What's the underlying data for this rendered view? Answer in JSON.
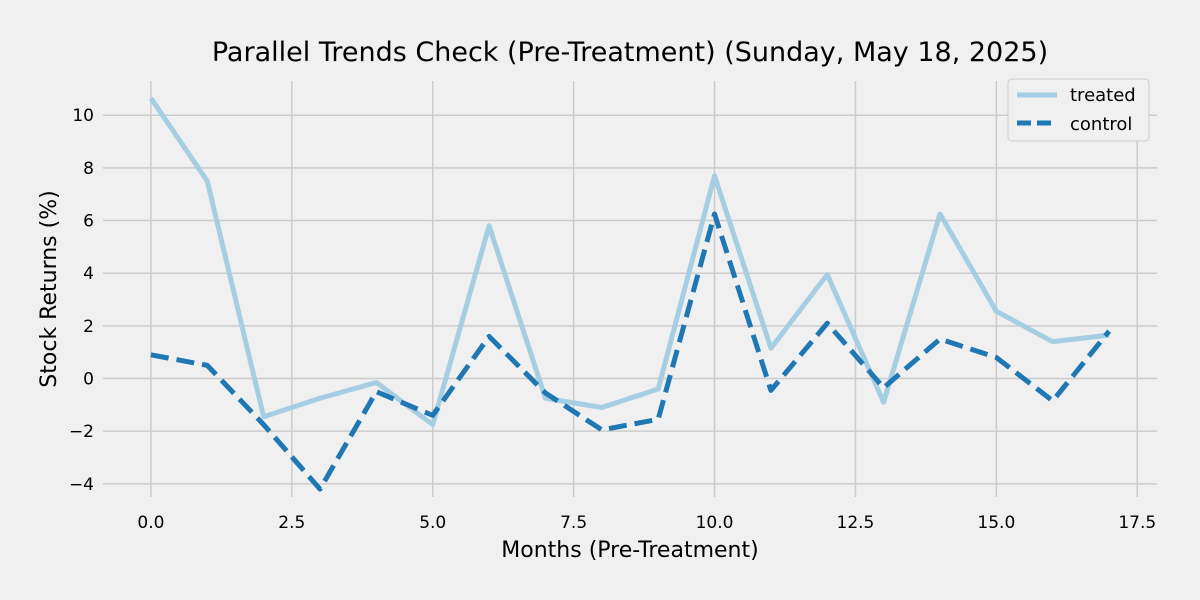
{
  "chart_data": {
    "type": "line",
    "title": "Parallel Trends Check (Pre-Treatment) (Sunday, May 18, 2025)",
    "xlabel": "Months (Pre-Treatment)",
    "ylabel": "Stock Returns (%)",
    "xlim": [
      -0.85,
      17.85
    ],
    "ylim": [
      -4.5,
      11.3
    ],
    "xticks": [
      0.0,
      2.5,
      5.0,
      7.5,
      10.0,
      12.5,
      15.0,
      17.5
    ],
    "xtick_labels": [
      "0.0",
      "2.5",
      "5.0",
      "7.5",
      "10.0",
      "12.5",
      "15.0",
      "17.5"
    ],
    "yticks": [
      -4,
      -2,
      0,
      2,
      4,
      6,
      8,
      10
    ],
    "ytick_labels": [
      "−4",
      "−2",
      "0",
      "2",
      "4",
      "6",
      "8",
      "10"
    ],
    "grid": true,
    "legend_position": "top-right",
    "x": [
      0,
      1,
      2,
      3,
      4,
      5,
      6,
      7,
      8,
      9,
      10,
      11,
      12,
      13,
      14,
      15,
      16,
      17
    ],
    "series": [
      {
        "name": "treated",
        "color": "#a6cee3",
        "dash": "solid",
        "values": [
          10.65,
          7.5,
          -1.45,
          -0.75,
          -0.15,
          -1.75,
          5.8,
          -0.75,
          -1.1,
          -0.4,
          7.7,
          1.15,
          3.95,
          -0.9,
          6.25,
          2.55,
          1.4,
          1.65
        ]
      },
      {
        "name": "control",
        "color": "#1f78b4",
        "dash": "dashed",
        "values": [
          0.9,
          0.5,
          -1.75,
          -4.2,
          -0.5,
          -1.4,
          1.6,
          -0.55,
          -1.95,
          -1.55,
          6.25,
          -0.45,
          2.1,
          -0.35,
          1.5,
          0.8,
          -0.85,
          1.8
        ]
      }
    ]
  }
}
